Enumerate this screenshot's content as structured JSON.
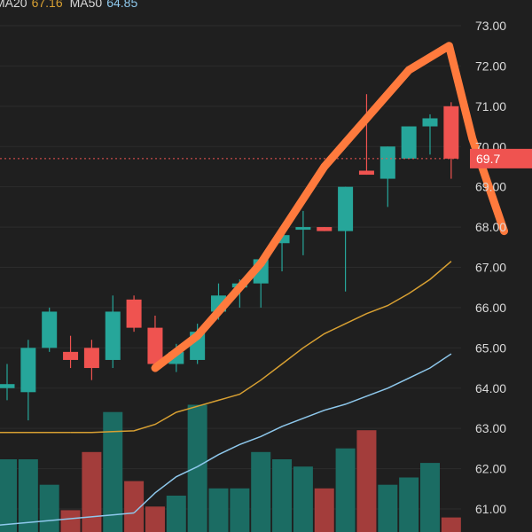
{
  "legend": {
    "ma20_label": "MA20",
    "ma20_value": "67.16",
    "ma50_label": "MA50",
    "ma50_value": "64.85"
  },
  "current_price_label": "69.7",
  "colors": {
    "background": "#1f1f1f",
    "up": "#26a69a",
    "down": "#ef5350",
    "ma20": "#d8a032",
    "ma50": "#8ec8ec",
    "annotation": "#ff7a3d",
    "grid": "#2c2c2c",
    "text": "#d9d9d9"
  },
  "chart_data": {
    "type": "candlestick",
    "y_ticks": [
      "61.00",
      "62.00",
      "63.00",
      "64.00",
      "65.00",
      "66.00",
      "67.00",
      "68.00",
      "69.00",
      "70.00",
      "71.00",
      "72.00",
      "73.00"
    ],
    "ylim": [
      60.4,
      73.5
    ],
    "grid": true,
    "candles": [
      {
        "open": 64.0,
        "high": 64.6,
        "low": 63.7,
        "close": 64.1
      },
      {
        "open": 63.9,
        "high": 65.2,
        "low": 63.2,
        "close": 65.0
      },
      {
        "open": 65.0,
        "high": 66.0,
        "low": 64.9,
        "close": 65.9
      },
      {
        "open": 64.9,
        "high": 65.3,
        "low": 64.5,
        "close": 64.7
      },
      {
        "open": 65.0,
        "high": 65.2,
        "low": 64.2,
        "close": 64.5
      },
      {
        "open": 64.7,
        "high": 66.3,
        "low": 64.5,
        "close": 65.9
      },
      {
        "open": 66.2,
        "high": 66.3,
        "low": 65.4,
        "close": 65.5
      },
      {
        "open": 65.5,
        "high": 65.8,
        "low": 64.4,
        "close": 64.6
      },
      {
        "open": 64.6,
        "high": 65.1,
        "low": 64.4,
        "close": 64.9
      },
      {
        "open": 64.7,
        "high": 65.6,
        "low": 64.6,
        "close": 65.4
      },
      {
        "open": 65.9,
        "high": 66.6,
        "low": 65.7,
        "close": 66.3
      },
      {
        "open": 66.5,
        "high": 66.7,
        "low": 66.0,
        "close": 66.6
      },
      {
        "open": 66.6,
        "high": 67.2,
        "low": 66.0,
        "close": 67.2
      },
      {
        "open": 67.6,
        "high": 68.0,
        "low": 66.9,
        "close": 67.8
      },
      {
        "open": 68.0,
        "high": 68.4,
        "low": 67.3,
        "close": 68.0
      },
      {
        "open": 68.0,
        "high": 68.0,
        "low": 67.9,
        "close": 67.9
      },
      {
        "open": 67.9,
        "high": 69.0,
        "low": 66.4,
        "close": 69.0
      },
      {
        "open": 69.4,
        "high": 71.3,
        "low": 69.3,
        "close": 69.3
      },
      {
        "open": 69.2,
        "high": 70.0,
        "low": 68.5,
        "close": 70.0
      },
      {
        "open": 69.7,
        "high": 70.5,
        "low": 69.7,
        "close": 70.5
      },
      {
        "open": 70.5,
        "high": 70.8,
        "low": 69.8,
        "close": 70.7
      },
      {
        "open": 71.0,
        "high": 71.1,
        "low": 69.2,
        "close": 69.7
      }
    ],
    "ma20": [
      62.9,
      62.9,
      62.92,
      62.94,
      63.1,
      63.4,
      63.55,
      63.7,
      63.85,
      64.2,
      64.6,
      65.0,
      65.35,
      65.6,
      65.85,
      66.05,
      66.35,
      66.7,
      67.15
    ],
    "ma50": [
      60.9,
      61.4,
      61.8,
      62.05,
      62.35,
      62.6,
      62.8,
      63.05,
      63.25,
      63.45,
      63.6,
      63.8,
      64.0,
      64.25,
      64.5,
      64.85
    ],
    "volume": [
      2.0,
      2.0,
      1.3,
      0.6,
      2.2,
      3.3,
      1.4,
      0.7,
      1.0,
      3.5,
      1.2,
      1.2,
      2.2,
      2.0,
      1.8,
      1.2,
      2.3,
      2.8,
      1.3,
      1.5,
      1.9,
      0.4
    ],
    "annotation_path": [
      [
        7,
        64.5
      ],
      [
        9,
        65.3
      ],
      [
        12,
        67.1
      ],
      [
        15,
        69.5
      ],
      [
        19,
        71.9
      ],
      [
        20.9,
        72.5
      ],
      [
        22,
        70.2
      ],
      [
        23.5,
        67.9
      ]
    ]
  }
}
